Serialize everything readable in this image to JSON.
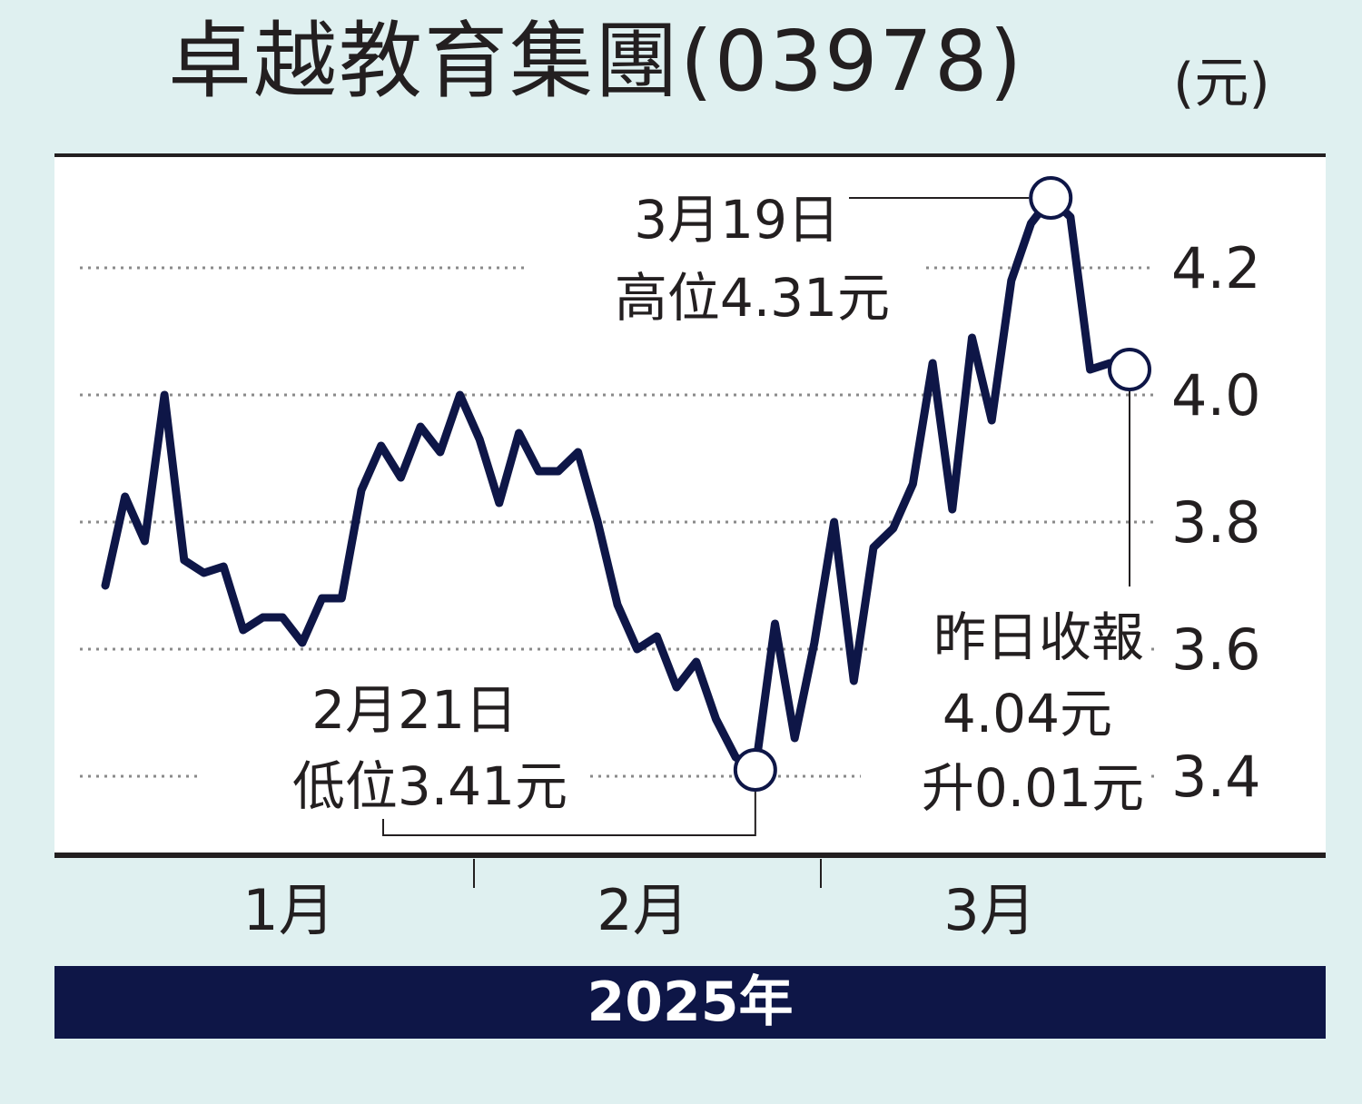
{
  "header": {
    "title": "卓越教育集團(03978)",
    "unit": "(元)"
  },
  "chart_data": {
    "type": "line",
    "title": "卓越教育集團(03978)",
    "unit": "(元)",
    "xlabel": "2025年",
    "x_tick_labels": [
      "1月",
      "2月",
      "3月"
    ],
    "y_ticks": [
      "4.2",
      "4.0",
      "3.8",
      "3.6",
      "3.4"
    ],
    "y_tick_values": [
      4.2,
      4.0,
      3.8,
      3.6,
      3.4
    ],
    "ylim": [
      3.34,
      4.42
    ],
    "grid": "dotted horizontal",
    "series": [
      {
        "values": [
          3.7,
          3.84,
          3.77,
          4.0,
          3.74,
          3.72,
          3.73,
          3.63,
          3.65,
          3.65,
          3.61,
          3.68,
          3.68,
          3.85,
          3.92,
          3.87,
          3.95,
          3.91,
          4.0,
          3.93,
          3.83,
          3.94,
          3.88,
          3.88,
          3.91,
          3.8,
          3.67,
          3.6,
          3.62,
          3.54,
          3.58,
          3.49,
          3.43,
          3.41,
          3.64,
          3.46,
          3.61,
          3.8,
          3.55,
          3.76,
          3.79,
          3.86,
          4.05,
          3.82,
          4.09,
          3.96,
          4.18,
          4.27,
          4.31,
          4.28,
          4.04,
          4.05,
          4.04
        ],
        "color": "#0e1647"
      }
    ],
    "annotations": {
      "high": {
        "date": "3月19日",
        "text": "高位4.31元",
        "value": 4.31
      },
      "low": {
        "date": "2月21日",
        "text": "低位3.41元",
        "value": 3.41
      },
      "close": {
        "line1": "昨日收報",
        "line2": "4.04元",
        "line3": "升0.01元",
        "value": 4.04
      }
    }
  },
  "footer": {
    "year": "2025年"
  }
}
